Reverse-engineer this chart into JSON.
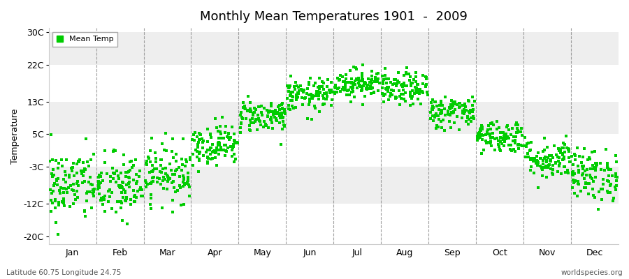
{
  "title": "Monthly Mean Temperatures 1901  -  2009",
  "ylabel": "Temperature",
  "subtitle_left": "Latitude 60.75 Longitude 24.75",
  "subtitle_right": "worldspecies.org",
  "legend_label": "Mean Temp",
  "dot_color": "#00cc00",
  "background_color": "#ffffff",
  "band_colors": [
    "#ffffff",
    "#eeeeee",
    "#ffffff",
    "#eeeeee",
    "#ffffff",
    "#eeeeee"
  ],
  "yticks": [
    -20,
    -12,
    -3,
    5,
    13,
    22,
    30
  ],
  "ytick_labels": [
    "-20C",
    "-12C",
    "-3C",
    "5C",
    "13C",
    "22C",
    "30C"
  ],
  "ylim": [
    -22,
    31
  ],
  "months": [
    "Jan",
    "Feb",
    "Mar",
    "Apr",
    "May",
    "Jun",
    "Jul",
    "Aug",
    "Sep",
    "Oct",
    "Nov",
    "Dec"
  ],
  "n_years": 109,
  "mean_temps": [
    -7.5,
    -8.0,
    -4.5,
    2.5,
    9.5,
    14.5,
    17.5,
    16.0,
    10.5,
    4.5,
    -1.0,
    -5.0
  ],
  "std_temps": [
    4.5,
    4.2,
    3.5,
    2.5,
    2.0,
    2.0,
    1.8,
    2.0,
    2.0,
    2.0,
    2.5,
    3.2
  ],
  "seed": 42
}
